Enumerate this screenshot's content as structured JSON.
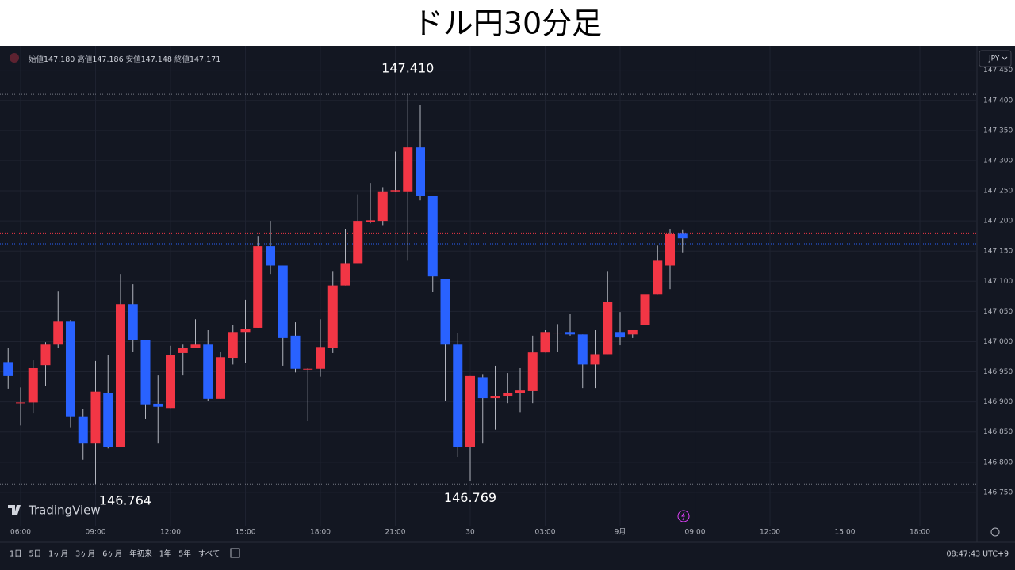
{
  "title": "ドル円30分足",
  "ohlc_header": [
    {
      "label": "始値",
      "value": "147.180"
    },
    {
      "label": "高値",
      "value": "147.186"
    },
    {
      "label": "安値",
      "value": "147.148"
    },
    {
      "label": "終値",
      "value": "147.171"
    }
  ],
  "currency": "JPY",
  "logo": "TradingView",
  "ranges": [
    "1日",
    "5日",
    "1ヶ月",
    "3ヶ月",
    "6ヶ月",
    "年初来",
    "1年",
    "5年",
    "すべて"
  ],
  "clock": "08:47:43 UTC+9",
  "chart_data": {
    "type": "candlestick",
    "up_color": "#f23645",
    "down_color": "#2962ff",
    "grid": true,
    "x": [
      0,
      1,
      2,
      3,
      4,
      5,
      6,
      7,
      8,
      9,
      10,
      11,
      12,
      13,
      14,
      15,
      16,
      17,
      18,
      19,
      20,
      21,
      22,
      23,
      24,
      25,
      26,
      27,
      28,
      29,
      30,
      31,
      32,
      33,
      34,
      35,
      36,
      37,
      38,
      39,
      40,
      41,
      42,
      43,
      44,
      45,
      46,
      47,
      48,
      49,
      50,
      51,
      52,
      53,
      54
    ],
    "open": [
      146.966,
      146.899,
      146.899,
      146.961,
      146.995,
      147.033,
      146.875,
      146.831,
      146.915,
      146.825,
      147.062,
      147.003,
      146.897,
      146.89,
      146.981,
      146.989,
      146.995,
      146.905,
      146.973,
      147.016,
      147.023,
      147.158,
      147.126,
      147.01,
      146.955,
      146.955,
      146.99,
      147.093,
      147.13,
      147.198,
      147.2,
      147.249,
      147.249,
      147.322,
      147.242,
      147.103,
      146.995,
      146.826,
      146.941,
      146.906,
      146.91,
      146.914,
      146.918,
      146.982,
      147.015,
      147.016,
      147.012,
      146.962,
      146.979,
      147.016,
      147.012,
      147.027,
      147.079,
      147.126,
      147.18
    ],
    "high": [
      146.99,
      146.924,
      146.969,
      146.999,
      147.083,
      147.036,
      146.888,
      146.968,
      146.977,
      147.112,
      147.095,
      147.003,
      146.944,
      146.993,
      146.995,
      147.037,
      147.019,
      146.983,
      147.027,
      147.069,
      147.175,
      147.2,
      147.126,
      147.032,
      146.956,
      147.037,
      147.117,
      147.187,
      147.244,
      147.263,
      147.256,
      147.315,
      147.41,
      147.392,
      147.242,
      147.103,
      147.015,
      146.943,
      146.945,
      146.96,
      146.948,
      146.956,
      147.01,
      147.019,
      147.029,
      147.046,
      147.012,
      147.019,
      147.117,
      147.049,
      147.019,
      147.118,
      147.159,
      147.187,
      147.186
    ],
    "low": [
      146.922,
      146.861,
      146.881,
      146.927,
      146.99,
      146.858,
      146.804,
      146.764,
      146.823,
      146.825,
      146.983,
      146.872,
      146.831,
      146.89,
      146.944,
      146.989,
      146.902,
      146.905,
      146.962,
      146.964,
      147.023,
      147.112,
      146.96,
      146.949,
      146.868,
      146.942,
      146.981,
      147.093,
      147.13,
      147.196,
      147.193,
      147.248,
      147.134,
      147.234,
      147.082,
      146.901,
      146.809,
      146.769,
      146.831,
      146.854,
      146.898,
      146.882,
      146.898,
      146.982,
      146.983,
      147.01,
      146.923,
      146.923,
      146.979,
      146.994,
      147.006,
      147.027,
      147.079,
      147.087,
      147.148
    ],
    "close": [
      146.943,
      146.899,
      146.956,
      146.995,
      147.033,
      146.875,
      146.831,
      146.917,
      146.826,
      147.062,
      147.003,
      146.896,
      146.892,
      146.977,
      146.99,
      146.995,
      146.905,
      146.974,
      147.016,
      147.021,
      147.158,
      147.126,
      147.006,
      146.955,
      146.955,
      146.991,
      147.093,
      147.13,
      147.2,
      147.201,
      147.249,
      147.251,
      147.322,
      147.242,
      147.108,
      146.995,
      146.826,
      146.943,
      146.906,
      146.91,
      146.915,
      146.919,
      146.982,
      147.016,
      147.015,
      147.012,
      146.962,
      146.979,
      147.066,
      147.007,
      147.019,
      147.079,
      147.134,
      147.179,
      147.171
    ],
    "xlim": [
      -0.65,
      77.57
    ],
    "ylim": [
      146.7,
      147.485
    ],
    "yticks": [
      {
        "value": 146.75,
        "label": "146.750"
      },
      {
        "value": 146.8,
        "label": "146.800"
      },
      {
        "value": 146.85,
        "label": "146.850"
      },
      {
        "value": 146.9,
        "label": "146.900"
      },
      {
        "value": 146.95,
        "label": "146.950"
      },
      {
        "value": 147.0,
        "label": "147.000"
      },
      {
        "value": 147.05,
        "label": "147.050"
      },
      {
        "value": 147.1,
        "label": "147.100"
      },
      {
        "value": 147.15,
        "label": "147.150"
      },
      {
        "value": 147.2,
        "label": "147.200"
      },
      {
        "value": 147.25,
        "label": "147.250"
      },
      {
        "value": 147.3,
        "label": "147.300"
      },
      {
        "value": 147.35,
        "label": "147.350"
      },
      {
        "value": 147.4,
        "label": "147.400"
      },
      {
        "value": 147.45,
        "label": "147.450"
      }
    ],
    "xticks": [
      {
        "value": 1,
        "label": "06:00"
      },
      {
        "value": 7,
        "label": "09:00"
      },
      {
        "value": 13,
        "label": "12:00"
      },
      {
        "value": 19,
        "label": "15:00"
      },
      {
        "value": 25,
        "label": "18:00"
      },
      {
        "value": 31,
        "label": "21:00"
      },
      {
        "value": 37,
        "label": "30"
      },
      {
        "value": 43,
        "label": "03:00"
      },
      {
        "value": 49,
        "label": "9月"
      },
      {
        "value": 55,
        "label": "09:00"
      },
      {
        "value": 61,
        "label": "12:00"
      },
      {
        "value": 67,
        "label": "15:00"
      },
      {
        "value": 73,
        "label": "18:00"
      }
    ],
    "hlines": [
      {
        "value": 147.41,
        "color": "#787b86"
      },
      {
        "value": 146.764,
        "color": "#787b86"
      },
      {
        "value": 147.18,
        "color": "#f23645"
      },
      {
        "value": 147.162,
        "color": "#2962ff"
      }
    ],
    "annotations": [
      {
        "x": 32,
        "value": 147.41,
        "label": "147.410",
        "side": "above"
      },
      {
        "x": 7,
        "value": 146.764,
        "label": "146.764",
        "side": "below"
      },
      {
        "x": 37,
        "value": 146.769,
        "label": "146.769",
        "side": "below"
      }
    ]
  }
}
